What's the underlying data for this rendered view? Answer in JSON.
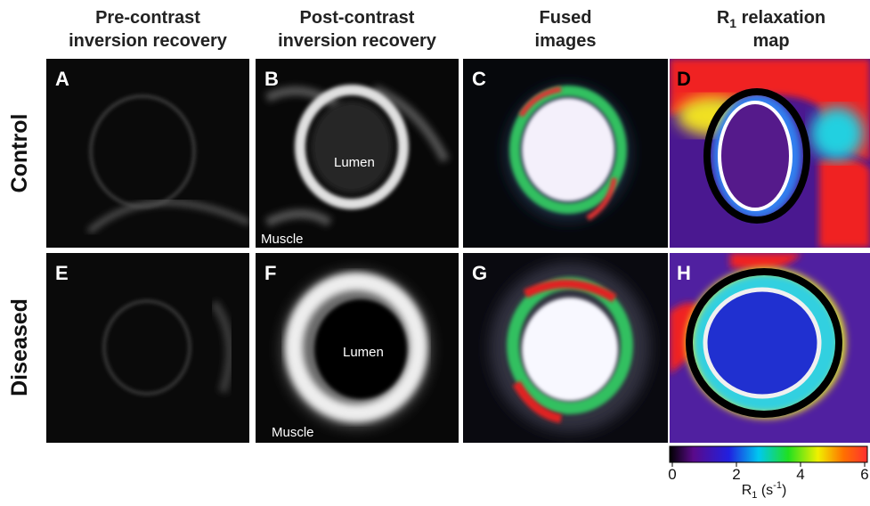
{
  "headers": [
    [
      "Pre-contrast",
      "inversion recovery"
    ],
    [
      "Post-contrast",
      "inversion recovery"
    ],
    [
      "Fused",
      "images"
    ],
    [
      [
        "R",
        "1",
        " relaxation"
      ],
      "map"
    ]
  ],
  "rows": [
    "Control",
    "Diseased"
  ],
  "panels": [
    {
      "letter": "A"
    },
    {
      "letter": "B",
      "lumen": "Lumen",
      "muscle": "Muscle"
    },
    {
      "letter": "C"
    },
    {
      "letter": "D"
    },
    {
      "letter": "E"
    },
    {
      "letter": "F",
      "lumen": "Lumen",
      "muscle": "Muscle"
    },
    {
      "letter": "G"
    },
    {
      "letter": "H"
    }
  ],
  "colorbar": {
    "ticks": [
      0,
      2,
      4,
      6
    ],
    "label": [
      "R",
      "1",
      " (s",
      "-1",
      ")"
    ]
  }
}
